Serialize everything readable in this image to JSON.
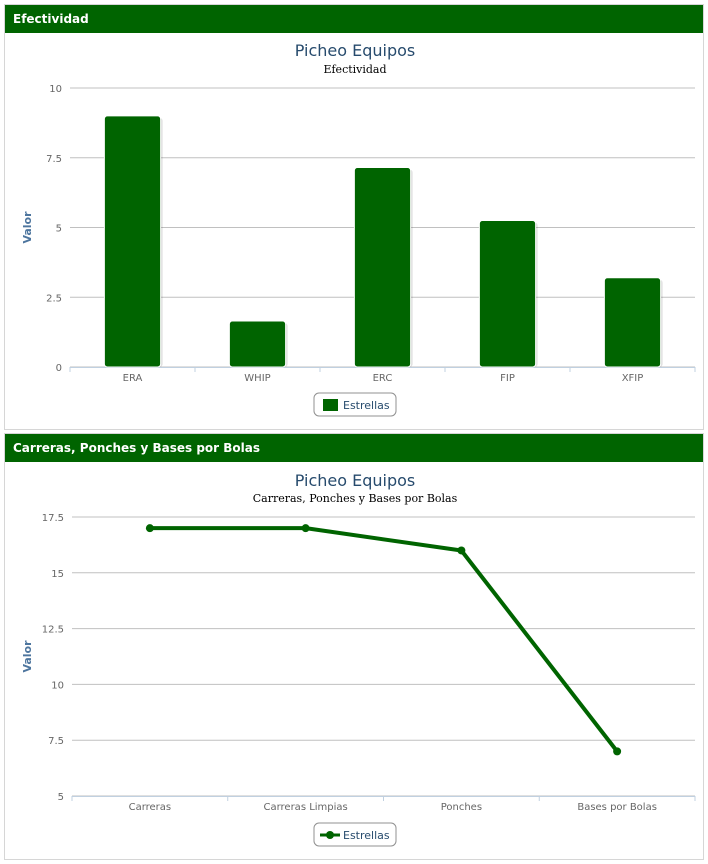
{
  "colors": {
    "accent": "#006400",
    "grid": "#c0c0c0",
    "axis": "#c0d0e0"
  },
  "panels": [
    {
      "header": "Efectividad",
      "chart_data": {
        "type": "bar",
        "title": "Picheo Equipos",
        "subtitle": "Efectividad",
        "ylabel": "Valor",
        "xlabel": "",
        "ylim": [
          0,
          10
        ],
        "yticks": [
          0,
          2.5,
          5,
          7.5,
          10
        ],
        "ytick_labels": [
          "0",
          "2.5",
          "5",
          "7.5",
          "10"
        ],
        "grid": true,
        "legend_position": "bottom-center",
        "categories": [
          "ERA",
          "WHIP",
          "ERC",
          "FIP",
          "XFIP"
        ],
        "series": [
          {
            "name": "Estrellas",
            "color": "#006400",
            "values": [
              9.0,
              1.65,
              7.15,
              5.25,
              3.2
            ]
          }
        ]
      }
    },
    {
      "header": "Carreras, Ponches y Bases por Bolas",
      "chart_data": {
        "type": "line",
        "title": "Picheo Equipos",
        "subtitle": "Carreras, Ponches y Bases por Bolas",
        "ylabel": "Valor",
        "xlabel": "",
        "ylim": [
          5,
          17.5
        ],
        "yticks": [
          5,
          7.5,
          10,
          12.5,
          15,
          17.5
        ],
        "ytick_labels": [
          "5",
          "7.5",
          "10",
          "12.5",
          "15",
          "17.5"
        ],
        "grid": true,
        "legend_position": "bottom-center",
        "categories": [
          "Carreras",
          "Carreras Limpias",
          "Ponches",
          "Bases por Bolas"
        ],
        "series": [
          {
            "name": "Estrellas",
            "color": "#006400",
            "values": [
              17,
              17,
              16,
              7
            ]
          }
        ]
      }
    }
  ]
}
